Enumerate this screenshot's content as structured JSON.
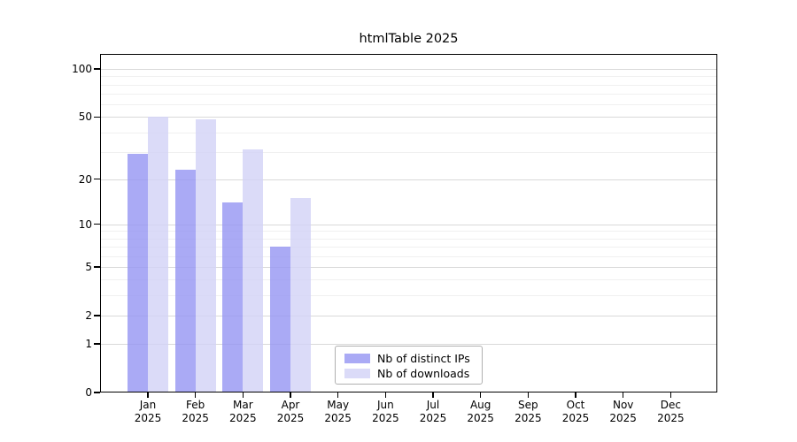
{
  "chart_data": {
    "type": "bar",
    "title": "htmlTable 2025",
    "categories": [
      "Jan",
      "Feb",
      "Mar",
      "Apr",
      "May",
      "Jun",
      "Jul",
      "Aug",
      "Sep",
      "Oct",
      "Nov",
      "Dec"
    ],
    "category_year": "2025",
    "series": [
      {
        "name": "Nb of distinct IPs",
        "color": "#9595f2",
        "alpha": 0.8,
        "values": [
          29,
          23,
          14,
          7,
          null,
          null,
          null,
          null,
          null,
          null,
          null,
          null
        ]
      },
      {
        "name": "Nb of downloads",
        "color": "#d2d2f6",
        "alpha": 0.8,
        "values": [
          50,
          48,
          31,
          15,
          null,
          null,
          null,
          null,
          null,
          null,
          null,
          null
        ]
      }
    ],
    "y_axis": {
      "scale": "log1p",
      "tick_values": [
        0,
        1,
        2,
        5,
        10,
        20,
        50,
        100
      ],
      "tick_labels": [
        "0",
        "1",
        "2",
        "5",
        "10",
        "20",
        "50",
        "100"
      ],
      "minor_gridlines": [
        3,
        4,
        6,
        7,
        8,
        9,
        30,
        40,
        60,
        70,
        80,
        90
      ],
      "ymax": 124
    },
    "grid": {
      "major_color": "#d9d9d9",
      "minor_color": "#f0f0f0"
    },
    "legend_position": "bottom-center-inside"
  }
}
